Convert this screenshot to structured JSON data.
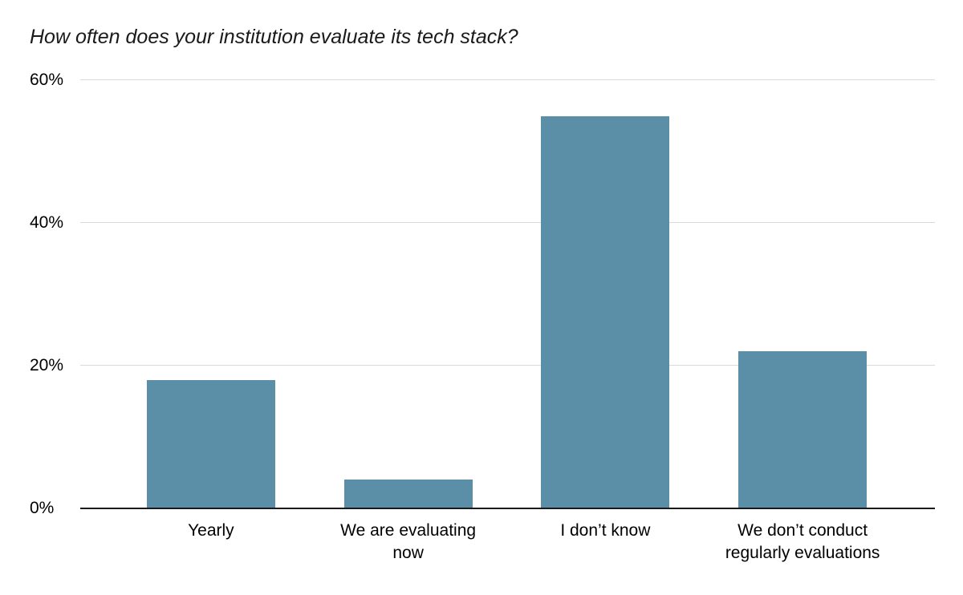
{
  "chart_data": {
    "type": "bar",
    "title": "How often does your institution evaluate its tech stack?",
    "categories": [
      "Yearly",
      "We are evaluating now",
      "I don’t know",
      "We don’t conduct regularly evaluations"
    ],
    "values": [
      18,
      4,
      55,
      22
    ],
    "value_unit": "%",
    "xlabel": "",
    "ylabel": "",
    "ylim": [
      0,
      60
    ],
    "yticks": [
      0,
      20,
      40,
      60
    ],
    "ytick_labels": [
      "0%",
      "20%",
      "40%",
      "60%"
    ],
    "grid": true,
    "legend": false,
    "bar_color": "#5b8fa8",
    "gridline_color": "#d9d9d9",
    "axis_color": "#1a1a1a",
    "background_color": "#ffffff"
  }
}
